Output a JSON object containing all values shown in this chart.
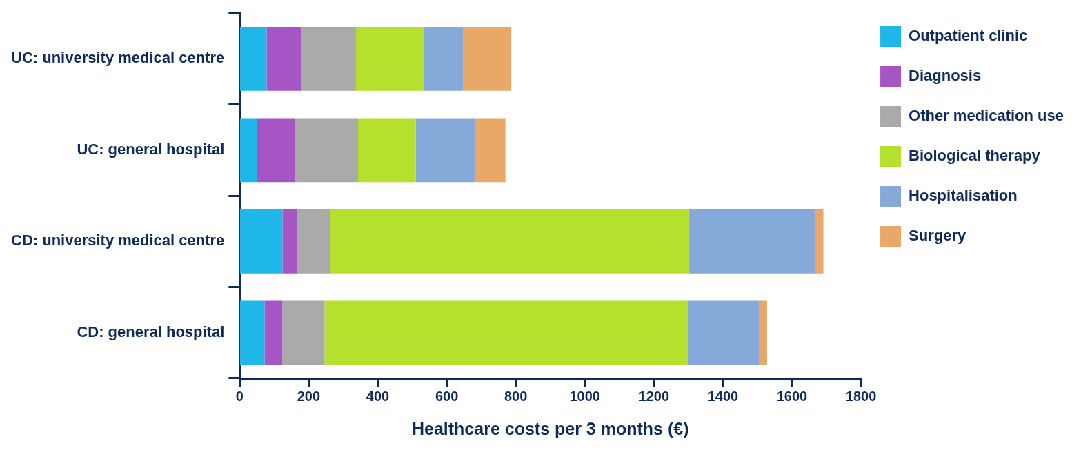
{
  "chart_data": {
    "type": "bar",
    "orientation": "horizontal",
    "stacked": true,
    "xlabel": "Healthcare costs per 3 months (€)",
    "categories": [
      "UC: university medical centre",
      "UC: general hospital",
      "CD: university medical centre",
      "CD: general hospital"
    ],
    "series": [
      {
        "name": "Outpatient clinic",
        "color": "#1fb6e8",
        "values": [
          78,
          51,
          124,
          72
        ]
      },
      {
        "name": "Diagnosis",
        "color": "#a655c4",
        "values": [
          101,
          109,
          43,
          52
        ]
      },
      {
        "name": "Other medication use",
        "color": "#aaaaaa",
        "values": [
          158,
          183,
          96,
          122
        ]
      },
      {
        "name": "Biological therapy",
        "color": "#b5e02e",
        "values": [
          197,
          167,
          1039,
          1051
        ]
      },
      {
        "name": "Hospitalisation",
        "color": "#85a9d8",
        "values": [
          113,
          172,
          366,
          207
        ]
      },
      {
        "name": "Surgery",
        "color": "#eaa868",
        "values": [
          140,
          88,
          23,
          24
        ]
      }
    ],
    "xlim": [
      0,
      1800
    ],
    "xticks": [
      0,
      200,
      400,
      600,
      800,
      1000,
      1200,
      1400,
      1600,
      1800
    ],
    "grid": false,
    "legend": "right"
  }
}
